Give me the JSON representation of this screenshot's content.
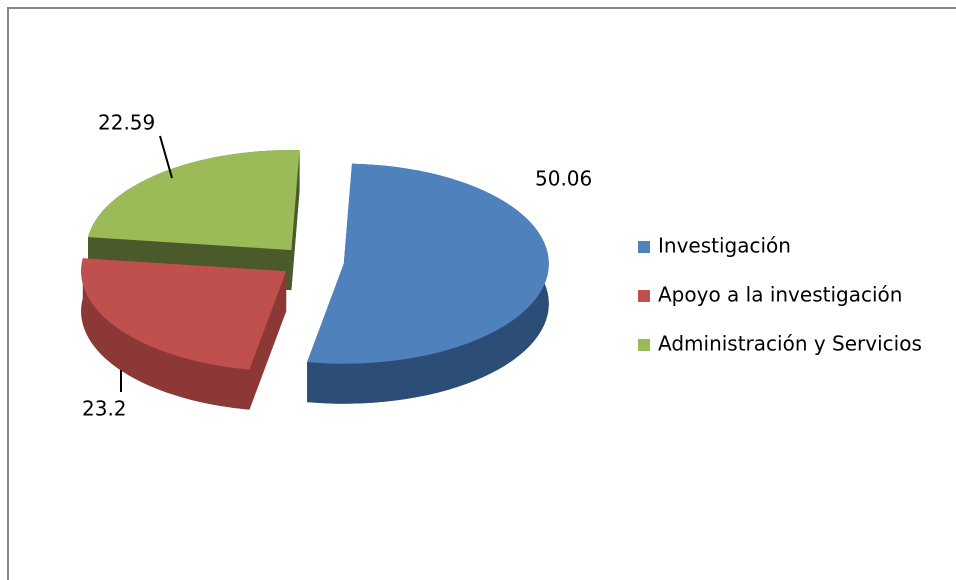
{
  "chart_data": {
    "type": "pie",
    "categories": [
      "Investigación",
      "Apoyo a la investigación",
      "Administración y Servicios"
    ],
    "values": [
      50.06,
      23.2,
      22.59
    ],
    "colors": [
      "#4f81bd",
      "#c0504d",
      "#9bbb59"
    ],
    "side_colors": [
      "#2c4d75",
      "#8c3836",
      "#4a5a2a"
    ],
    "legend": "right"
  }
}
